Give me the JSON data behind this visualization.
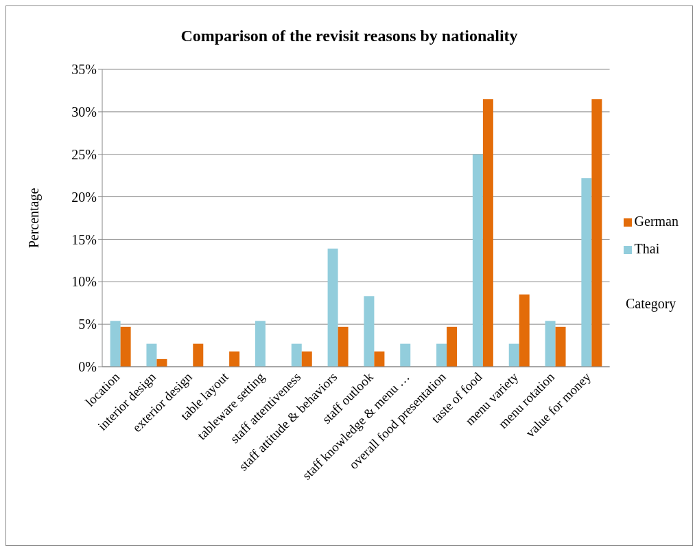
{
  "chart_data": {
    "type": "bar",
    "title": "Comparison of the revisit reasons by nationality",
    "ylabel": "Percentage",
    "xlabel": "Category",
    "categories": [
      "location",
      "interior design",
      "exterior design",
      "table layout",
      "tableware setting",
      "staff attentiveness",
      "staff attitude & behaviors",
      "staff outlook",
      "staff knowledge & menu …",
      "overall food presentation",
      "taste of food",
      "menu variety",
      "menu rotation",
      "value for money"
    ],
    "series": [
      {
        "name": "Thai",
        "color": "#92cddc",
        "values": [
          5.4,
          2.7,
          0,
          0,
          5.4,
          2.7,
          13.9,
          8.3,
          2.7,
          2.7,
          25,
          2.7,
          5.4,
          22.2
        ]
      },
      {
        "name": "German",
        "color": "#e36c09",
        "values": [
          4.7,
          0.9,
          2.7,
          1.8,
          0,
          1.8,
          4.7,
          1.8,
          0,
          4.7,
          31.5,
          8.5,
          4.7,
          31.5
        ]
      }
    ],
    "ylim": [
      0,
      35
    ],
    "yticks": [
      {
        "value": 0,
        "label": "0%"
      },
      {
        "value": 5,
        "label": "5%"
      },
      {
        "value": 10,
        "label": "10%"
      },
      {
        "value": 15,
        "label": "15%"
      },
      {
        "value": 20,
        "label": "20%"
      },
      {
        "value": 25,
        "label": "25%"
      },
      {
        "value": 30,
        "label": "30%"
      },
      {
        "value": 35,
        "label": "35%"
      }
    ],
    "grid": "y",
    "legend": "right"
  }
}
